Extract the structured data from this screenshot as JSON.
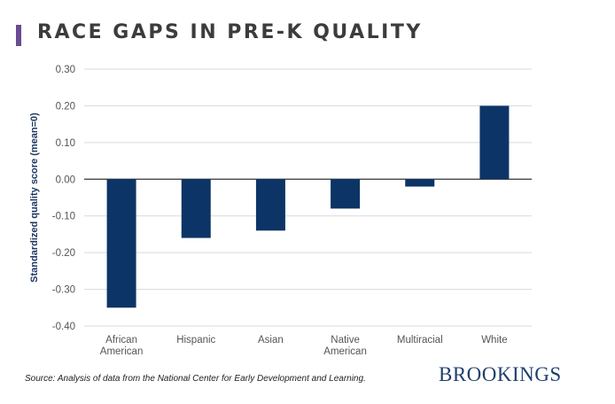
{
  "header": {
    "title": "RACE GAPS IN PRE-K QUALITY"
  },
  "colors": {
    "accent": "#6a4c93",
    "bar": "#0d3466",
    "grid": "#d9d9d9",
    "brand": "#1f3f6e"
  },
  "chart_data": {
    "type": "bar",
    "title": "",
    "xlabel": "",
    "ylabel": "Standardized quality score (mean=0)",
    "categories": [
      [
        "African",
        "American"
      ],
      [
        "Hispanic"
      ],
      [
        "Asian"
      ],
      [
        "Native",
        "American"
      ],
      [
        "Multiracial"
      ],
      [
        "White"
      ]
    ],
    "values": [
      -0.35,
      -0.16,
      -0.14,
      -0.08,
      -0.02,
      0.2
    ],
    "ylim": [
      -0.4,
      0.3
    ],
    "yticks": [
      0.3,
      0.2,
      0.1,
      0.0,
      -0.1,
      -0.2,
      -0.3,
      -0.4
    ],
    "ytick_labels": [
      "0.30",
      "0.20",
      "0.10",
      "0.00",
      "-0.10",
      "-0.20",
      "-0.30",
      "-0.40"
    ],
    "grid": true,
    "legend": "none"
  },
  "footer": {
    "source": "Source: Analysis of data from the National Center for Early Development and Learning.",
    "brand": "BROOKINGS"
  }
}
